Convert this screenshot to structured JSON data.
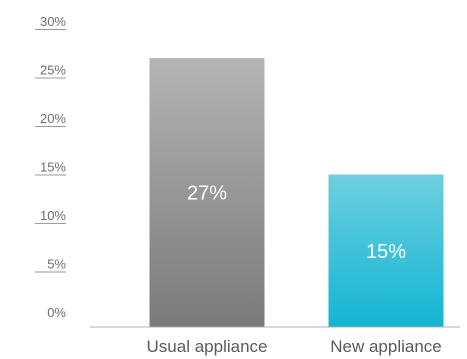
{
  "chart_data": {
    "type": "bar",
    "title": "",
    "xlabel": "",
    "ylabel": "",
    "categories": [
      "Usual appliance",
      "New appliance"
    ],
    "values": [
      27,
      15
    ],
    "data_labels": [
      "27%",
      "15%"
    ],
    "ylim": [
      0,
      30
    ],
    "y_ticks": [
      {
        "value": 0,
        "label": "0%"
      },
      {
        "value": 5,
        "label": "5%"
      },
      {
        "value": 10,
        "label": "10%"
      },
      {
        "value": 15,
        "label": "15%"
      },
      {
        "value": 20,
        "label": "20%"
      },
      {
        "value": 25,
        "label": "25%"
      },
      {
        "value": 30,
        "label": "30%"
      }
    ],
    "bar_colors": [
      {
        "top": "#b4b4b4",
        "bottom": "#7a7a7a"
      },
      {
        "top": "#6ecfe0",
        "bottom": "#12b5d3"
      }
    ],
    "grid": false,
    "legend": "none"
  }
}
